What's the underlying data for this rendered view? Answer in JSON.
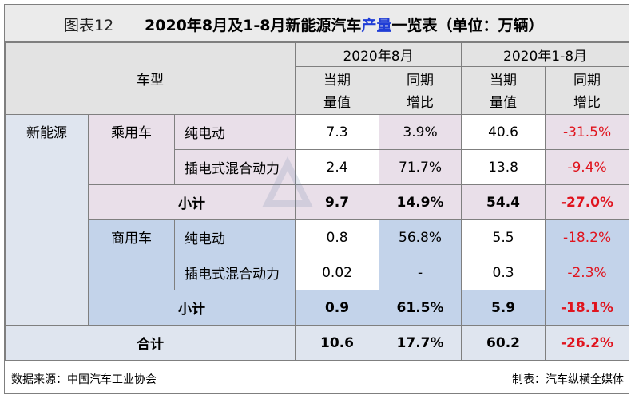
{
  "title": {
    "label": "图表12",
    "main_before": "2020年8月及1-8月新能源汽车",
    "main_highlight": "产量",
    "main_after": "一览表（单位：万辆）"
  },
  "header": {
    "car_type": "车型",
    "period_aug": "2020年8月",
    "period_ytd": "2020年1-8月",
    "cur_value_line1": "当期",
    "cur_value_line2": "量值",
    "yoy_line1": "同期",
    "yoy_line2": "增比"
  },
  "group": "新能源",
  "rows": {
    "passenger": {
      "category": "乘用车",
      "ev": {
        "label": "纯电动",
        "aug_value": "7.3",
        "aug_yoy": "3.9%",
        "ytd_value": "40.6",
        "ytd_yoy": "-31.5%"
      },
      "phev": {
        "label": "插电式混合动力",
        "aug_value": "2.4",
        "aug_yoy": "71.7%",
        "ytd_value": "13.8",
        "ytd_yoy": "-9.4%"
      },
      "subtotal": {
        "label": "小计",
        "aug_value": "9.7",
        "aug_yoy": "14.9%",
        "ytd_value": "54.4",
        "ytd_yoy": "-27.0%"
      }
    },
    "commercial": {
      "category": "商用车",
      "ev": {
        "label": "纯电动",
        "aug_value": "0.8",
        "aug_yoy": "56.8%",
        "ytd_value": "5.5",
        "ytd_yoy": "-18.2%"
      },
      "phev": {
        "label": "插电式混合动力",
        "aug_value": "0.02",
        "aug_yoy": "-",
        "ytd_value": "0.3",
        "ytd_yoy": "-2.3%"
      },
      "subtotal": {
        "label": "小计",
        "aug_value": "0.9",
        "aug_yoy": "61.5%",
        "ytd_value": "5.9",
        "ytd_yoy": "-18.1%"
      }
    },
    "total": {
      "label": "合计",
      "aug_value": "10.6",
      "aug_yoy": "17.7%",
      "ytd_value": "60.2",
      "ytd_yoy": "-26.2%"
    }
  },
  "footer": {
    "source": "数据来源：中国汽车工业协会",
    "maker": "制表：汽车纵横全媒体"
  },
  "colors": {
    "negative": "#e0141e",
    "highlight": "#1f3dd6",
    "passenger_bg": "#e9dfe9",
    "commercial_bg": "#c3d3ea"
  }
}
